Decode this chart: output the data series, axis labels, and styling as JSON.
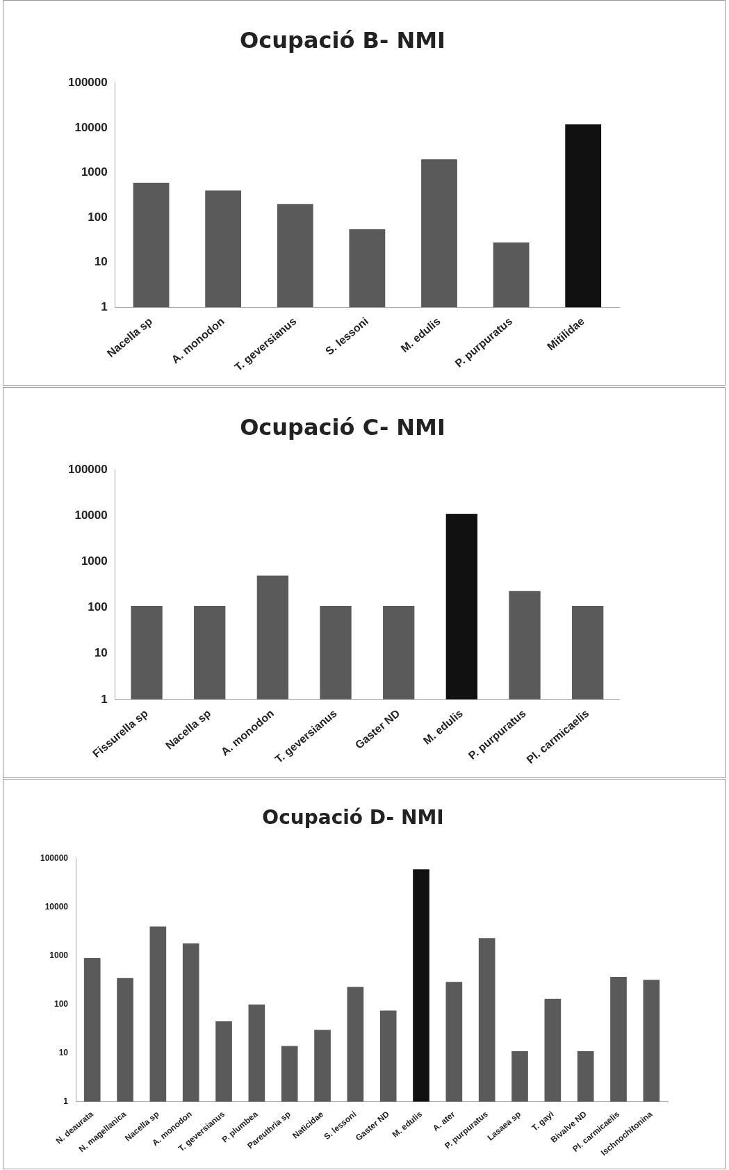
{
  "chart_data": [
    {
      "type": "bar",
      "title": "Ocupació B- NMI",
      "categories": [
        "Nacella sp",
        "A. monodon",
        "T. geversianus",
        "S. lessoni",
        "M. edulis",
        "P. purpuratus",
        "Mitilidae"
      ],
      "values": [
        600,
        400,
        200,
        55,
        2000,
        28,
        12000
      ],
      "colors": [
        "#5a5a5a",
        "#5a5a5a",
        "#5a5a5a",
        "#5a5a5a",
        "#5a5a5a",
        "#5a5a5a",
        "#111111"
      ],
      "log": "y",
      "ylim": [
        1,
        100000
      ],
      "yticks": [
        1,
        10,
        100,
        1000,
        10000,
        100000
      ],
      "grid": false,
      "legend": false
    },
    {
      "type": "bar",
      "title": "Ocupació C- NMI",
      "categories": [
        "Fissurella sp",
        "Nacella sp",
        "A. monodon",
        "T. geversianus",
        "Gaster ND",
        "M. edulis",
        "P. purpuratus",
        "Pl. carmicaelis"
      ],
      "values": [
        110,
        110,
        500,
        110,
        110,
        11000,
        230,
        110
      ],
      "colors": [
        "#5a5a5a",
        "#5a5a5a",
        "#5a5a5a",
        "#5a5a5a",
        "#5a5a5a",
        "#111111",
        "#5a5a5a",
        "#5a5a5a"
      ],
      "log": "y",
      "ylim": [
        1,
        100000
      ],
      "yticks": [
        1,
        10,
        100,
        1000,
        10000,
        100000
      ],
      "grid": false,
      "legend": false
    },
    {
      "type": "bar",
      "title": "Ocupació D- NMI",
      "categories": [
        "N. deaurata",
        "N. magellanica",
        "Nacella sp",
        "A. monodon",
        "T. geversianus",
        "P. plumbea",
        "Pareuthria sp",
        "Naticidae",
        "S. lessoni",
        "Gaster ND",
        "M. edulis",
        "A. ater",
        "P. purpuratus",
        "Lasaea sp",
        "T. gayi",
        "Bivalve ND",
        "Pl. carmicaelis",
        "Ischnochitonina"
      ],
      "values": [
        900,
        350,
        4000,
        1800,
        45,
        100,
        14,
        30,
        230,
        75,
        60000,
        290,
        2300,
        11,
        130,
        11,
        370,
        320
      ],
      "colors": [
        "#5a5a5a",
        "#5a5a5a",
        "#5a5a5a",
        "#5a5a5a",
        "#5a5a5a",
        "#5a5a5a",
        "#5a5a5a",
        "#5a5a5a",
        "#5a5a5a",
        "#5a5a5a",
        "#111111",
        "#5a5a5a",
        "#5a5a5a",
        "#5a5a5a",
        "#5a5a5a",
        "#5a5a5a",
        "#5a5a5a",
        "#5a5a5a"
      ],
      "log": "y",
      "ylim": [
        1,
        100000
      ],
      "yticks": [
        1,
        10,
        100,
        1000,
        10000,
        100000
      ],
      "grid": false,
      "legend": false
    }
  ]
}
